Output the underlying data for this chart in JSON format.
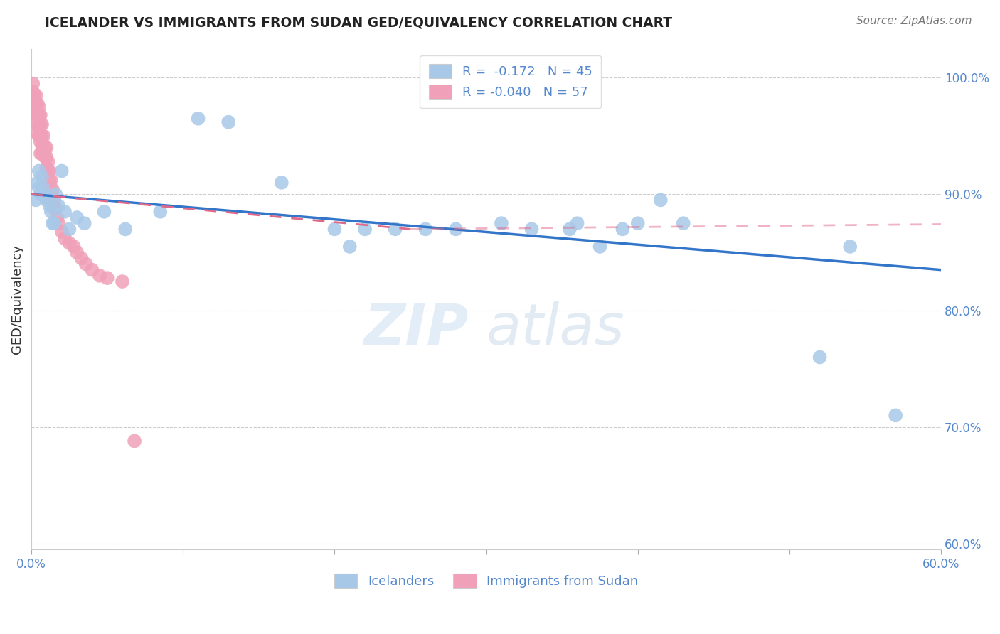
{
  "title": "ICELANDER VS IMMIGRANTS FROM SUDAN GED/EQUIVALENCY CORRELATION CHART",
  "source": "Source: ZipAtlas.com",
  "ylabel": "GED/Equivalency",
  "ylabel_right_labels": [
    "100.0%",
    "90.0%",
    "80.0%",
    "70.0%",
    "60.0%"
  ],
  "ylabel_right_vals": [
    1.0,
    0.9,
    0.8,
    0.7,
    0.6
  ],
  "xlim": [
    0.0,
    0.6
  ],
  "ylim": [
    0.595,
    1.025
  ],
  "legend_blue_r": "-0.172",
  "legend_blue_n": "45",
  "legend_pink_r": "-0.040",
  "legend_pink_n": "57",
  "blue_label": "Icelanders",
  "pink_label": "Immigrants from Sudan",
  "blue_color": "#a8c8e8",
  "pink_color": "#f0a0b8",
  "blue_line_color": "#3375c8",
  "pink_line_color": "#e06888",
  "watermark_top": "ZIP",
  "watermark_bottom": "atlas",
  "blue_points_x": [
    0.003,
    0.004,
    0.005,
    0.005,
    0.006,
    0.007,
    0.008,
    0.009,
    0.01,
    0.011,
    0.012,
    0.013,
    0.014,
    0.015,
    0.016,
    0.018,
    0.02,
    0.022,
    0.025,
    0.03,
    0.035,
    0.048,
    0.062,
    0.085,
    0.11,
    0.13,
    0.165,
    0.2,
    0.21,
    0.22,
    0.24,
    0.26,
    0.28,
    0.31,
    0.33,
    0.355,
    0.36,
    0.375,
    0.39,
    0.4,
    0.415,
    0.43,
    0.52,
    0.54,
    0.57
  ],
  "blue_points_y": [
    0.895,
    0.91,
    0.92,
    0.905,
    0.9,
    0.915,
    0.905,
    0.9,
    0.895,
    0.895,
    0.89,
    0.885,
    0.875,
    0.875,
    0.9,
    0.89,
    0.92,
    0.885,
    0.87,
    0.88,
    0.875,
    0.885,
    0.87,
    0.885,
    0.965,
    0.962,
    0.91,
    0.87,
    0.855,
    0.87,
    0.87,
    0.87,
    0.87,
    0.875,
    0.87,
    0.87,
    0.875,
    0.855,
    0.87,
    0.875,
    0.895,
    0.875,
    0.76,
    0.855,
    0.71
  ],
  "pink_points_x": [
    0.001,
    0.001,
    0.002,
    0.002,
    0.002,
    0.003,
    0.003,
    0.003,
    0.004,
    0.004,
    0.004,
    0.004,
    0.005,
    0.005,
    0.005,
    0.005,
    0.006,
    0.006,
    0.006,
    0.006,
    0.006,
    0.007,
    0.007,
    0.007,
    0.007,
    0.008,
    0.008,
    0.008,
    0.009,
    0.009,
    0.01,
    0.01,
    0.01,
    0.011,
    0.011,
    0.012,
    0.012,
    0.013,
    0.013,
    0.014,
    0.015,
    0.015,
    0.016,
    0.017,
    0.018,
    0.02,
    0.022,
    0.025,
    0.028,
    0.03,
    0.033,
    0.036,
    0.04,
    0.045,
    0.05,
    0.06,
    0.068
  ],
  "pink_points_y": [
    0.995,
    0.988,
    0.985,
    0.978,
    0.97,
    0.985,
    0.978,
    0.968,
    0.978,
    0.97,
    0.96,
    0.952,
    0.975,
    0.968,
    0.958,
    0.95,
    0.968,
    0.96,
    0.952,
    0.945,
    0.935,
    0.96,
    0.95,
    0.942,
    0.935,
    0.95,
    0.942,
    0.935,
    0.94,
    0.932,
    0.94,
    0.932,
    0.922,
    0.928,
    0.92,
    0.92,
    0.912,
    0.912,
    0.904,
    0.904,
    0.895,
    0.888,
    0.888,
    0.88,
    0.875,
    0.868,
    0.862,
    0.858,
    0.855,
    0.85,
    0.845,
    0.84,
    0.835,
    0.83,
    0.828,
    0.825,
    0.688
  ],
  "blue_line_x0": 0.0,
  "blue_line_x1": 0.6,
  "blue_line_y0": 0.9,
  "blue_line_y1": 0.835,
  "pink_line_x0": 0.0,
  "pink_line_x1": 0.25,
  "pink_line_y0": 0.9,
  "pink_line_y1": 0.87
}
